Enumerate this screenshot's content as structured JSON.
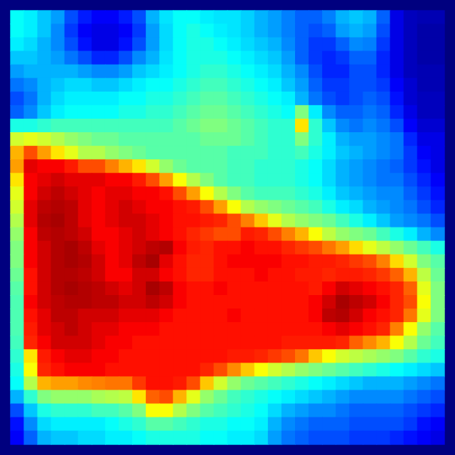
{
  "chart_data": {
    "type": "heatmap",
    "tick_labels": false,
    "zlim": [
      0,
      100
    ],
    "cells": [
      [
        38,
        36,
        32,
        28,
        20,
        15,
        12,
        12,
        15,
        20,
        30,
        35,
        38,
        38,
        36,
        35,
        35,
        33,
        30,
        28,
        25,
        22,
        22,
        25,
        30,
        32,
        30,
        22,
        10,
        6,
        5,
        5
      ],
      [
        38,
        36,
        32,
        26,
        18,
        12,
        10,
        10,
        12,
        18,
        28,
        34,
        38,
        40,
        38,
        36,
        35,
        33,
        30,
        28,
        25,
        22,
        20,
        22,
        28,
        30,
        28,
        20,
        10,
        6,
        4,
        4
      ],
      [
        36,
        34,
        30,
        26,
        20,
        14,
        10,
        10,
        14,
        20,
        28,
        34,
        38,
        40,
        40,
        38,
        36,
        34,
        32,
        30,
        26,
        22,
        18,
        18,
        22,
        26,
        25,
        18,
        10,
        6,
        4,
        4
      ],
      [
        32,
        32,
        30,
        28,
        24,
        20,
        16,
        16,
        20,
        26,
        30,
        35,
        38,
        40,
        40,
        40,
        38,
        36,
        34,
        32,
        28,
        22,
        18,
        16,
        18,
        22,
        22,
        16,
        10,
        6,
        4,
        4
      ],
      [
        28,
        30,
        30,
        30,
        30,
        28,
        26,
        26,
        28,
        32,
        34,
        36,
        38,
        40,
        42,
        42,
        40,
        38,
        36,
        34,
        30,
        26,
        20,
        16,
        16,
        20,
        20,
        16,
        10,
        6,
        5,
        5
      ],
      [
        24,
        26,
        30,
        32,
        34,
        34,
        32,
        32,
        34,
        36,
        38,
        38,
        40,
        42,
        44,
        44,
        42,
        40,
        38,
        36,
        32,
        28,
        22,
        18,
        18,
        20,
        20,
        18,
        12,
        8,
        5,
        5
      ],
      [
        20,
        24,
        30,
        34,
        36,
        36,
        36,
        36,
        38,
        38,
        40,
        40,
        42,
        44,
        46,
        46,
        44,
        42,
        40,
        38,
        36,
        30,
        24,
        20,
        18,
        20,
        22,
        20,
        14,
        8,
        6,
        6
      ],
      [
        22,
        26,
        32,
        36,
        38,
        38,
        38,
        38,
        40,
        40,
        42,
        42,
        44,
        46,
        48,
        48,
        46,
        44,
        42,
        40,
        38,
        50,
        36,
        26,
        22,
        22,
        24,
        22,
        16,
        10,
        6,
        6
      ],
      [
        40,
        40,
        42,
        44,
        44,
        44,
        44,
        44,
        44,
        44,
        44,
        44,
        46,
        48,
        50,
        50,
        48,
        46,
        44,
        42,
        42,
        65,
        42,
        32,
        26,
        24,
        26,
        24,
        20,
        12,
        8,
        8
      ],
      [
        58,
        60,
        58,
        55,
        52,
        50,
        48,
        48,
        46,
        46,
        46,
        46,
        46,
        46,
        48,
        48,
        48,
        46,
        44,
        42,
        42,
        50,
        42,
        36,
        30,
        28,
        28,
        26,
        24,
        16,
        10,
        10
      ],
      [
        70,
        80,
        72,
        65,
        60,
        55,
        55,
        52,
        50,
        48,
        46,
        46,
        46,
        46,
        46,
        46,
        44,
        44,
        44,
        42,
        42,
        44,
        40,
        36,
        32,
        30,
        28,
        26,
        24,
        18,
        12,
        10
      ],
      [
        72,
        90,
        88,
        88,
        85,
        80,
        80,
        75,
        70,
        65,
        58,
        52,
        48,
        46,
        46,
        46,
        44,
        44,
        42,
        42,
        42,
        40,
        38,
        34,
        30,
        28,
        26,
        24,
        22,
        18,
        14,
        10
      ],
      [
        65,
        88,
        90,
        92,
        90,
        90,
        90,
        88,
        88,
        85,
        80,
        72,
        62,
        55,
        50,
        46,
        44,
        44,
        42,
        42,
        42,
        40,
        38,
        34,
        30,
        28,
        26,
        24,
        24,
        20,
        16,
        12
      ],
      [
        60,
        88,
        92,
        94,
        92,
        90,
        88,
        90,
        90,
        88,
        88,
        86,
        80,
        72,
        62,
        55,
        50,
        46,
        44,
        44,
        44,
        42,
        40,
        36,
        32,
        30,
        28,
        26,
        26,
        22,
        18,
        14
      ],
      [
        58,
        90,
        94,
        95,
        94,
        90,
        88,
        90,
        92,
        90,
        88,
        88,
        86,
        85,
        80,
        72,
        62,
        55,
        52,
        50,
        48,
        46,
        44,
        40,
        36,
        34,
        30,
        28,
        26,
        24,
        20,
        16
      ],
      [
        55,
        90,
        95,
        96,
        94,
        90,
        88,
        90,
        92,
        92,
        90,
        88,
        86,
        86,
        85,
        84,
        80,
        75,
        68,
        60,
        55,
        52,
        50,
        48,
        44,
        40,
        36,
        32,
        28,
        26,
        24,
        20
      ],
      [
        52,
        88,
        94,
        95,
        94,
        92,
        88,
        88,
        90,
        92,
        90,
        88,
        86,
        84,
        82,
        80,
        80,
        85,
        84,
        80,
        75,
        70,
        62,
        56,
        52,
        50,
        48,
        44,
        40,
        36,
        30,
        26
      ],
      [
        50,
        88,
        92,
        95,
        96,
        94,
        90,
        88,
        90,
        92,
        94,
        95,
        88,
        85,
        84,
        86,
        86,
        88,
        86,
        86,
        84,
        82,
        80,
        76,
        72,
        66,
        60,
        56,
        52,
        48,
        44,
        40
      ],
      [
        50,
        88,
        92,
        95,
        96,
        95,
        92,
        88,
        90,
        94,
        96,
        90,
        86,
        84,
        84,
        86,
        88,
        88,
        88,
        88,
        86,
        86,
        85,
        85,
        84,
        82,
        80,
        75,
        66,
        58,
        50,
        46
      ],
      [
        48,
        86,
        92,
        95,
        95,
        94,
        92,
        88,
        88,
        92,
        92,
        88,
        86,
        84,
        84,
        86,
        86,
        86,
        88,
        86,
        86,
        85,
        85,
        84,
        85,
        85,
        84,
        82,
        78,
        70,
        56,
        48
      ],
      [
        46,
        86,
        92,
        95,
        96,
        95,
        94,
        92,
        90,
        92,
        96,
        94,
        88,
        86,
        86,
        88,
        86,
        86,
        86,
        86,
        86,
        86,
        85,
        88,
        92,
        90,
        88,
        86,
        84,
        78,
        60,
        50
      ],
      [
        45,
        88,
        92,
        94,
        95,
        95,
        94,
        94,
        92,
        92,
        94,
        92,
        88,
        86,
        86,
        86,
        86,
        86,
        86,
        86,
        86,
        86,
        88,
        92,
        96,
        94,
        92,
        88,
        84,
        80,
        62,
        50
      ],
      [
        45,
        86,
        90,
        94,
        94,
        92,
        92,
        92,
        90,
        90,
        90,
        88,
        86,
        86,
        86,
        86,
        88,
        86,
        86,
        86,
        86,
        86,
        88,
        94,
        95,
        92,
        88,
        86,
        84,
        76,
        60,
        50
      ],
      [
        45,
        85,
        90,
        92,
        94,
        92,
        90,
        90,
        88,
        88,
        88,
        86,
        86,
        86,
        86,
        86,
        86,
        86,
        86,
        86,
        86,
        86,
        86,
        88,
        90,
        88,
        86,
        84,
        75,
        62,
        52,
        46
      ],
      [
        44,
        84,
        88,
        92,
        92,
        92,
        90,
        88,
        88,
        86,
        86,
        86,
        86,
        86,
        86,
        86,
        86,
        86,
        86,
        86,
        85,
        85,
        85,
        85,
        84,
        78,
        74,
        70,
        62,
        55,
        48,
        44
      ],
      [
        42,
        65,
        85,
        88,
        90,
        90,
        88,
        88,
        86,
        86,
        86,
        86,
        86,
        86,
        86,
        86,
        85,
        85,
        84,
        82,
        80,
        76,
        68,
        62,
        58,
        56,
        54,
        52,
        50,
        46,
        42,
        40
      ],
      [
        40,
        62,
        84,
        86,
        88,
        88,
        88,
        86,
        86,
        86,
        86,
        86,
        86,
        86,
        84,
        80,
        74,
        68,
        62,
        58,
        55,
        52,
        50,
        48,
        46,
        44,
        42,
        40,
        38,
        36,
        34,
        32
      ],
      [
        38,
        55,
        70,
        72,
        72,
        74,
        75,
        76,
        76,
        82,
        86,
        86,
        85,
        80,
        68,
        58,
        52,
        48,
        46,
        44,
        42,
        40,
        38,
        36,
        34,
        32,
        30,
        30,
        30,
        28,
        26,
        24
      ],
      [
        30,
        42,
        50,
        52,
        52,
        52,
        54,
        55,
        56,
        65,
        78,
        80,
        70,
        60,
        52,
        48,
        44,
        42,
        40,
        38,
        36,
        34,
        32,
        30,
        28,
        26,
        26,
        26,
        26,
        24,
        22,
        20
      ],
      [
        20,
        32,
        40,
        42,
        42,
        42,
        44,
        44,
        46,
        50,
        62,
        62,
        55,
        50,
        46,
        44,
        42,
        40,
        38,
        34,
        30,
        28,
        26,
        26,
        24,
        22,
        22,
        22,
        22,
        20,
        18,
        16
      ],
      [
        14,
        26,
        34,
        36,
        36,
        36,
        36,
        38,
        40,
        42,
        46,
        46,
        44,
        42,
        40,
        40,
        38,
        38,
        36,
        30,
        26,
        24,
        22,
        22,
        22,
        20,
        20,
        20,
        20,
        18,
        14,
        12
      ],
      [
        12,
        22,
        30,
        32,
        32,
        34,
        34,
        36,
        36,
        38,
        40,
        40,
        40,
        40,
        38,
        38,
        36,
        36,
        34,
        28,
        24,
        22,
        20,
        20,
        20,
        18,
        18,
        18,
        16,
        14,
        12,
        10
      ]
    ]
  }
}
